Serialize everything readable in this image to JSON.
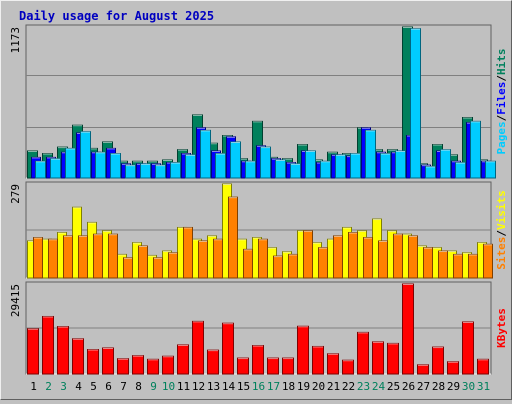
{
  "title": "Daily usage for August 2025",
  "colors": {
    "hits": "#00805c",
    "files": "#0000ff",
    "pages": "#00ccff",
    "visits": "#ffff00",
    "sites": "#ff8000",
    "kbytes": "#ff0000",
    "weekday_label": "#000000",
    "weekend_label": "#00805c"
  },
  "chart_data": [
    {
      "type": "bar",
      "name": "top-panel",
      "ymax_label": "1173",
      "ylim": [
        0,
        1173
      ],
      "legend": [
        "Pages",
        "Files",
        "Hits"
      ],
      "legend_separator": "/",
      "categories": [
        "1",
        "2",
        "3",
        "4",
        "5",
        "6",
        "7",
        "8",
        "9",
        "10",
        "11",
        "12",
        "13",
        "14",
        "15",
        "16",
        "17",
        "18",
        "19",
        "20",
        "21",
        "22",
        "23",
        "24",
        "25",
        "26",
        "27",
        "28",
        "29",
        "30",
        "31"
      ],
      "series": [
        {
          "name": "Hits",
          "values": [
            210,
            190,
            240,
            410,
            230,
            280,
            130,
            130,
            130,
            140,
            220,
            490,
            270,
            330,
            150,
            440,
            160,
            150,
            260,
            140,
            200,
            190,
            390,
            220,
            220,
            1173,
            110,
            260,
            180,
            470,
            140
          ]
        },
        {
          "name": "Files",
          "values": [
            160,
            160,
            200,
            350,
            200,
            230,
            110,
            110,
            110,
            120,
            190,
            390,
            210,
            320,
            130,
            250,
            150,
            120,
            210,
            120,
            180,
            170,
            390,
            200,
            200,
            330,
            100,
            210,
            130,
            430,
            130
          ]
        },
        {
          "name": "Pages",
          "values": [
            130,
            150,
            230,
            360,
            200,
            190,
            100,
            110,
            100,
            120,
            180,
            370,
            190,
            280,
            130,
            240,
            140,
            110,
            210,
            130,
            180,
            190,
            370,
            190,
            210,
            1160,
            90,
            220,
            120,
            440,
            130
          ]
        }
      ]
    },
    {
      "type": "bar",
      "name": "middle-panel",
      "ymax_label": "279",
      "ylim": [
        0,
        279
      ],
      "legend": [
        "Sites",
        "Visits"
      ],
      "legend_separator": "/",
      "categories": [
        "1",
        "2",
        "3",
        "4",
        "5",
        "6",
        "7",
        "8",
        "9",
        "10",
        "11",
        "12",
        "13",
        "14",
        "15",
        "16",
        "17",
        "18",
        "19",
        "20",
        "21",
        "22",
        "23",
        "24",
        "25",
        "26",
        "27",
        "28",
        "29",
        "30",
        "31"
      ],
      "series": [
        {
          "name": "Visits",
          "values": [
            110,
            115,
            135,
            210,
            165,
            140,
            70,
            105,
            67,
            80,
            150,
            115,
            125,
            279,
            115,
            120,
            90,
            78,
            140,
            105,
            115,
            150,
            140,
            175,
            140,
            130,
            95,
            90,
            80,
            75,
            105
          ]
        },
        {
          "name": "Sites",
          "values": [
            120,
            115,
            125,
            125,
            130,
            130,
            60,
            95,
            60,
            75,
            150,
            110,
            115,
            240,
            85,
            115,
            65,
            70,
            140,
            90,
            125,
            135,
            120,
            110,
            130,
            125,
            90,
            80,
            70,
            70,
            100
          ]
        }
      ]
    },
    {
      "type": "bar",
      "name": "bottom-panel",
      "ymax_label": "29415",
      "ylim": [
        0,
        29415
      ],
      "legend": [
        "KBytes"
      ],
      "categories": [
        "1",
        "2",
        "3",
        "4",
        "5",
        "6",
        "7",
        "8",
        "9",
        "10",
        "11",
        "12",
        "13",
        "14",
        "15",
        "16",
        "17",
        "18",
        "19",
        "20",
        "21",
        "22",
        "23",
        "24",
        "25",
        "26",
        "27",
        "28",
        "29",
        "30",
        "31"
      ],
      "series": [
        {
          "name": "KBytes",
          "values": [
            14800,
            18800,
            15500,
            11500,
            8000,
            8500,
            5000,
            6000,
            4800,
            5800,
            9500,
            17200,
            7800,
            16600,
            5200,
            9300,
            5200,
            5200,
            15600,
            9000,
            6600,
            4500,
            13600,
            10500,
            10000,
            29415,
            3000,
            8800,
            4000,
            17000,
            4800
          ]
        }
      ]
    }
  ],
  "weekend_days": [
    "2",
    "3",
    "9",
    "10",
    "16",
    "17",
    "23",
    "24",
    "30",
    "31"
  ]
}
